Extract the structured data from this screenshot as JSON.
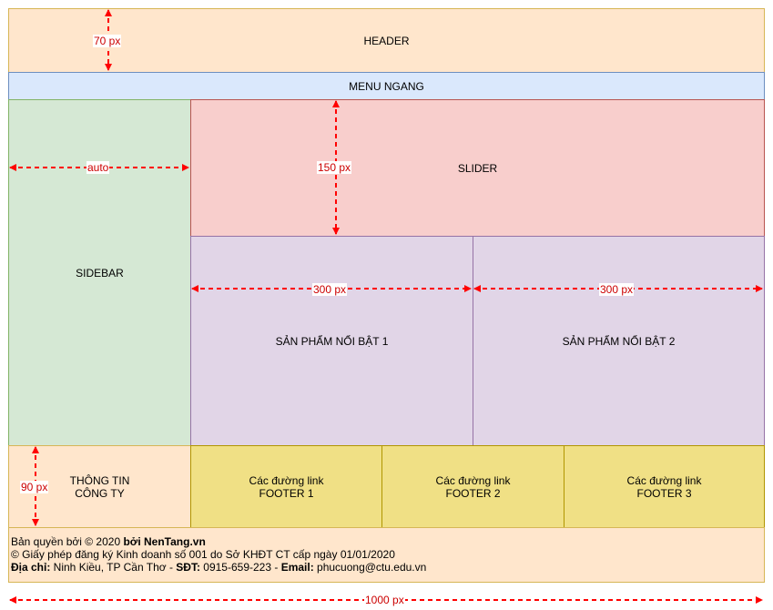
{
  "blocks": {
    "header": "HEADER",
    "menu": "MENU NGANG",
    "sidebar": "SIDEBAR",
    "slider": "SLIDER",
    "product1": "SẢN PHẨM NỔI BẬT 1",
    "product2": "SẢN PHẨM NỔI BẬT 2",
    "company_info": "THÔNG TIN\nCÔNG TY",
    "footer1": "Các đường link\nFOOTER 1",
    "footer2": "Các đường link\nFOOTER 2",
    "footer3": "Các đường link\nFOOTER 3"
  },
  "copyright": {
    "line1_prefix": "Bản quyền bởi © 2020 ",
    "line1_brand": "bởi NenTang.vn",
    "line2": "© Giấy phép đăng ký Kinh doanh số 001 do Sở KHĐT CT cấp ngày 01/01/2020",
    "address_label": "Địa chỉ:",
    "address_value": " Ninh Kiều, TP Cần Thơ - ",
    "phone_label": "SĐT:",
    "phone_value": " 0915-659-223 - ",
    "email_label": "Email:",
    "email_value": " phucuong@ctu.edu.vn"
  },
  "dimensions": {
    "header_height": "70 px",
    "sidebar_width": "auto",
    "slider_height": "150 px",
    "product1_width": "300 px",
    "product2_width": "300 px",
    "footer_height": "90 px",
    "total_width": "1000 px"
  },
  "colors": {
    "arrow": "#ff0000",
    "dimension_text": "#cc0000"
  }
}
